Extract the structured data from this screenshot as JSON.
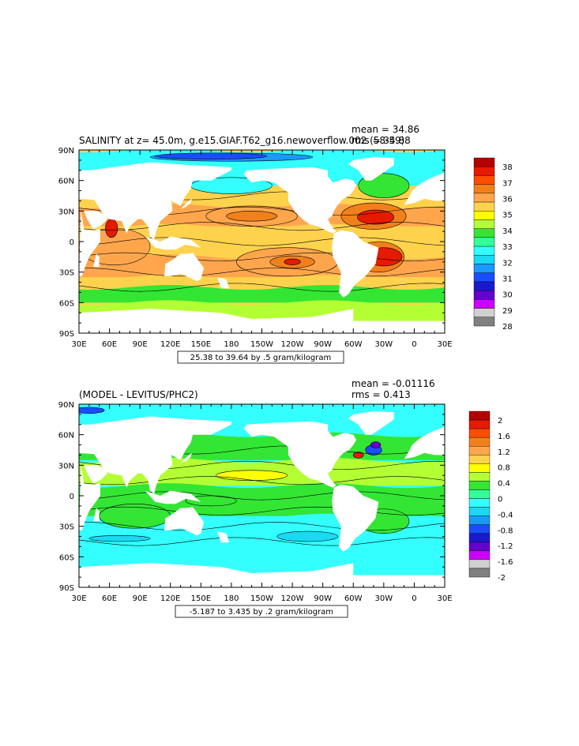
{
  "chart_data": [
    {
      "type": "heatmap",
      "title": "SALINITY at z=  45.0m, g.e15.GIAF.T62_g16.newoverflow.002 (58-59)",
      "stats": {
        "mean": "mean = 34.86",
        "rms": "rms = 34.88"
      },
      "x_ticks": [
        "30E",
        "60E",
        "90E",
        "120E",
        "150E",
        "180",
        "150W",
        "120W",
        "90W",
        "60W",
        "30W",
        "0",
        "30E"
      ],
      "y_ticks": [
        "90N",
        "60N",
        "30N",
        "0",
        "30S",
        "60S",
        "90S"
      ],
      "contour_info": "25.38 to 39.64 by .5 gram/kilogram",
      "colorbar": {
        "labels": [
          "38",
          "37",
          "36",
          "35",
          "34",
          "33",
          "32",
          "31",
          "30",
          "29",
          "28"
        ],
        "colors": [
          "#b30000",
          "#e61a00",
          "#ff4d00",
          "#f2801a",
          "#ffa64d",
          "#ffd24d",
          "#ffff00",
          "#b3ff33",
          "#33e633",
          "#33ff99",
          "#33ffff",
          "#1ad9f2",
          "#1a99ff",
          "#1a4dff",
          "#1a1acc",
          "#6600cc",
          "#cc00ff",
          "#d0d0d0",
          "#808080"
        ]
      }
    },
    {
      "type": "heatmap",
      "title": "(MODEL - LEVITUS/PHC2)",
      "stats": {
        "mean": "mean = -0.01116",
        "rms": "rms = 0.413"
      },
      "x_ticks": [
        "30E",
        "60E",
        "90E",
        "120E",
        "150E",
        "180",
        "150W",
        "120W",
        "90W",
        "60W",
        "30W",
        "0",
        "30E"
      ],
      "y_ticks": [
        "90N",
        "60N",
        "30N",
        "0",
        "30S",
        "60S",
        "90S"
      ],
      "contour_info": "-5.187 to 3.435 by .2 gram/kilogram",
      "colorbar": {
        "labels": [
          "2",
          "1.6",
          "1.2",
          "0.8",
          "0.4",
          "0",
          "-0.4",
          "-0.8",
          "-1.2",
          "-1.6",
          "-2"
        ],
        "colors": [
          "#b30000",
          "#e61a00",
          "#ff4d00",
          "#f2801a",
          "#ffa64d",
          "#ffd24d",
          "#ffff00",
          "#b3ff33",
          "#33e633",
          "#33ff99",
          "#33ffff",
          "#1ad9f2",
          "#1a99ff",
          "#1a4dff",
          "#1a1acc",
          "#6600cc",
          "#cc00ff",
          "#d0d0d0",
          "#808080"
        ]
      }
    }
  ]
}
